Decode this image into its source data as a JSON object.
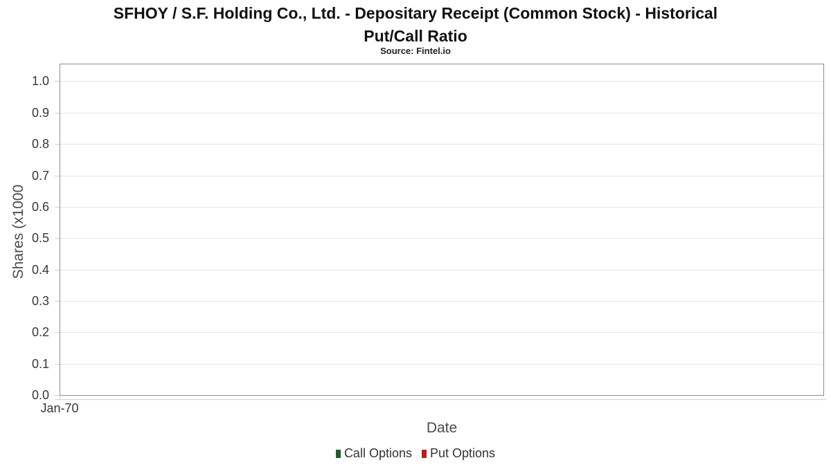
{
  "header": {
    "title_lines": [
      "SFHOY / S.F. Holding Co., Ltd. - Depositary Receipt (Common Stock) - Historical",
      "Put/Call Ratio"
    ],
    "subtitle": "Source: Fintel.io"
  },
  "chart_data": {
    "type": "bar",
    "title": "SFHOY / S.F. Holding Co., Ltd. - Depositary Receipt (Common Stock) - Historical Put/Call Ratio",
    "subtitle": "Source: Fintel.io",
    "xlabel": "Date",
    "ylabel": "Shares (x1000",
    "x_ticks": [
      "Jan-70"
    ],
    "y_ticks": [
      "0.0",
      "0.1",
      "0.2",
      "0.3",
      "0.4",
      "0.5",
      "0.6",
      "0.7",
      "0.8",
      "0.9",
      "1.0"
    ],
    "ylim": [
      0.0,
      1.05
    ],
    "grid": "horizontal",
    "legend_position": "bottom-center",
    "series": [
      {
        "name": "Call Options",
        "color": "#1e5c31",
        "values": []
      },
      {
        "name": "Put Options",
        "color": "#b71e20",
        "values": []
      }
    ]
  },
  "colors": {
    "gridline": "#e6e6e6",
    "plot_border": "#8c8c8c",
    "tick": "#cfcfcf",
    "text_dark": "#111111",
    "text_axis": "#383838",
    "call_green": "#1e5c31",
    "put_red": "#b71e20"
  }
}
